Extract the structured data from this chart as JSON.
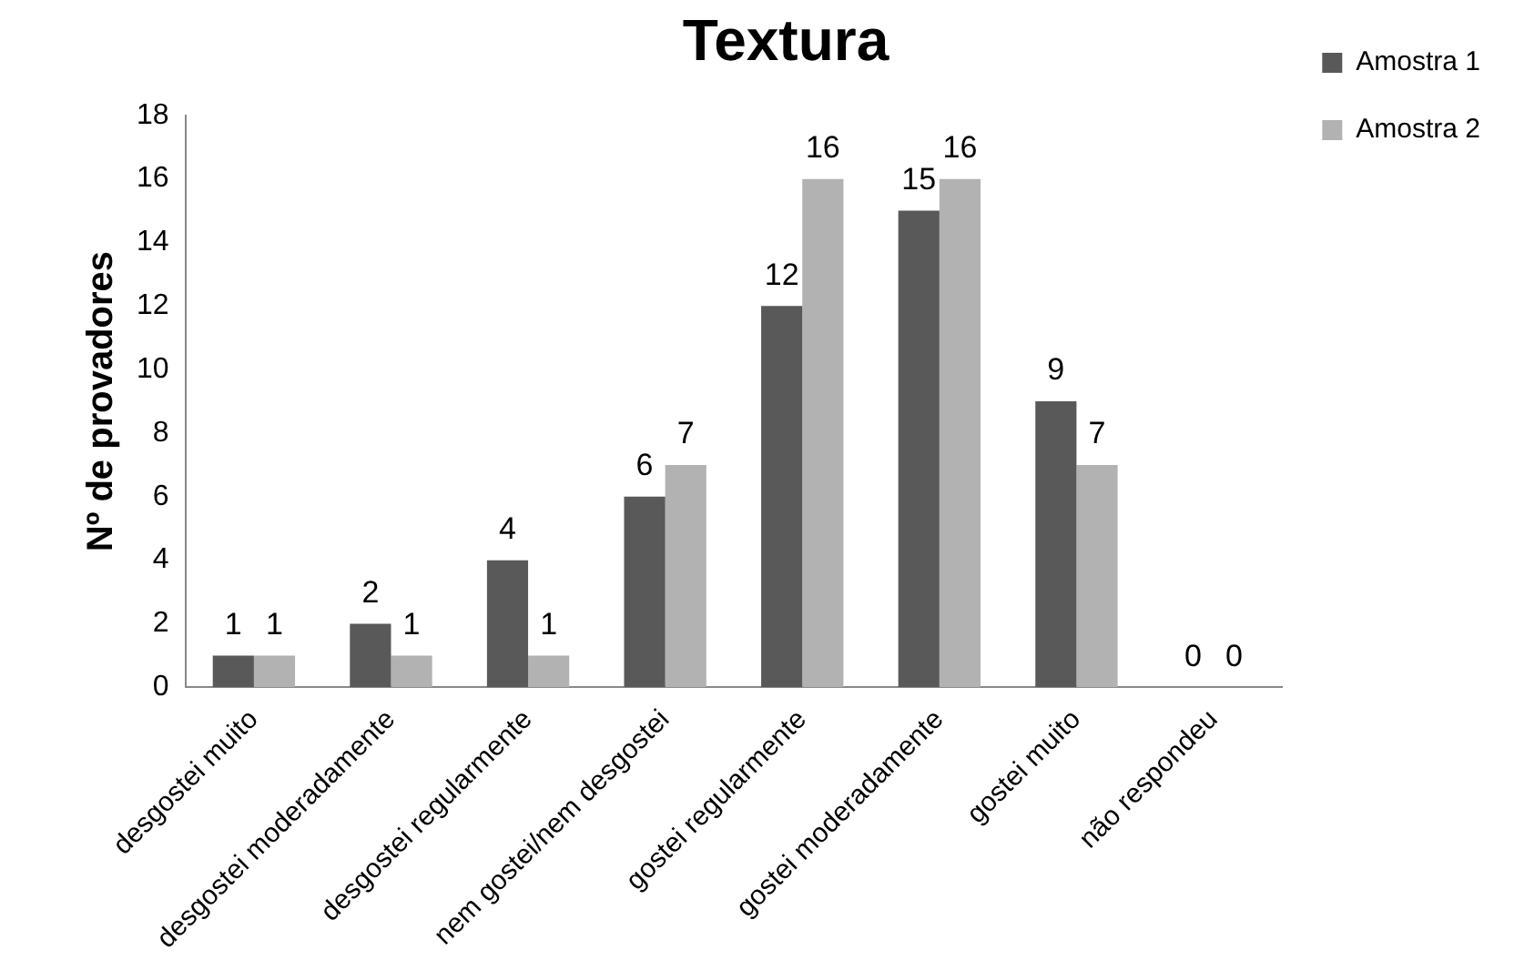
{
  "chart_data": {
    "type": "bar",
    "title": "Textura",
    "ylabel": "Nº de provadores",
    "categories": [
      "desgostei muito",
      "desgostei moderadamente",
      "desgostei regularmente",
      "nem gostei/nem desgostei",
      "gostei regularmente",
      "gostei moderadamente",
      "gostei muito",
      "não respondeu"
    ],
    "series": [
      {
        "name": "Amostra 1",
        "color": "#595959",
        "values": [
          1,
          2,
          4,
          6,
          12,
          15,
          9,
          0
        ]
      },
      {
        "name": "Amostra 2",
        "color": "#b2b2b2",
        "values": [
          1,
          1,
          1,
          7,
          16,
          16,
          7,
          0
        ]
      }
    ],
    "ylim": [
      0,
      18
    ],
    "yticks": [
      0,
      2,
      4,
      6,
      8,
      10,
      12,
      14,
      16,
      18
    ],
    "grid": false,
    "legend": "right",
    "data_labels": true
  }
}
